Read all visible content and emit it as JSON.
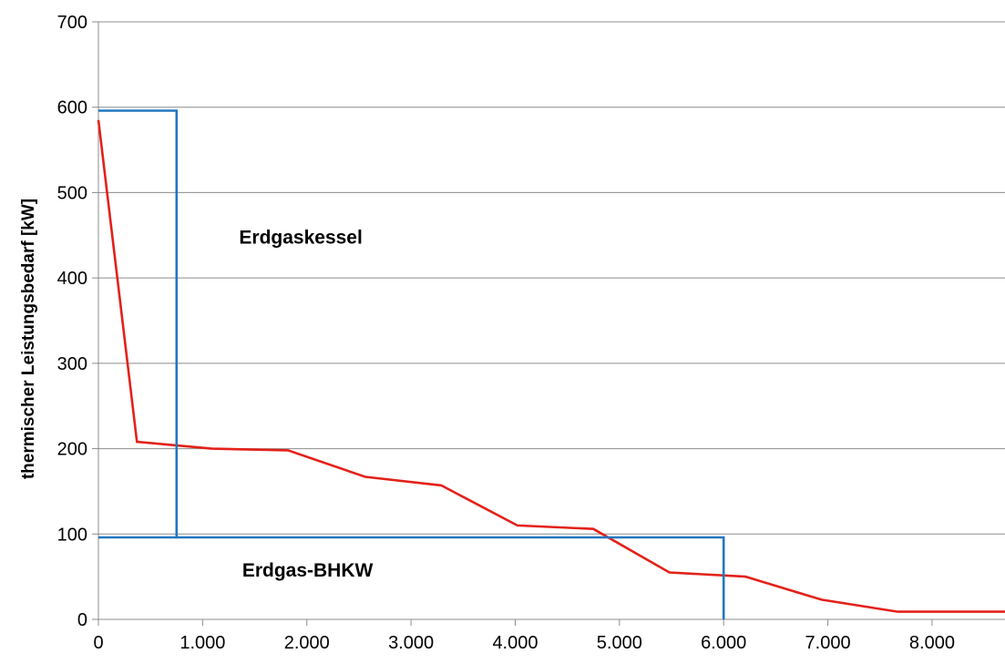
{
  "chart_data": {
    "type": "line",
    "title": "",
    "xlabel": "",
    "ylabel": "thermischer Leistungsbedarf [kW]",
    "xlim": [
      0,
      8700
    ],
    "ylim": [
      0,
      700
    ],
    "grid": true,
    "x_ticks": [
      0,
      1000,
      2000,
      3000,
      4000,
      5000,
      6000,
      7000,
      8000
    ],
    "x_tick_labels": [
      "0",
      "1.000",
      "2.000",
      "3.000",
      "4.000",
      "5.000",
      "6.000",
      "7.000",
      "8.000"
    ],
    "y_ticks": [
      0,
      100,
      200,
      300,
      400,
      500,
      600,
      700
    ],
    "y_tick_labels": [
      "0",
      "100",
      "200",
      "300",
      "400",
      "500",
      "600",
      "700"
    ],
    "series": [
      {
        "name": "",
        "color": "#e32119",
        "points": [
          [
            0,
            585
          ],
          [
            370,
            208
          ],
          [
            1090,
            200
          ],
          [
            1820,
            198
          ],
          [
            2560,
            167
          ],
          [
            3290,
            157
          ],
          [
            4020,
            110
          ],
          [
            4750,
            106
          ],
          [
            5480,
            55
          ],
          [
            6210,
            50
          ],
          [
            6940,
            23
          ],
          [
            7670,
            9
          ],
          [
            8700,
            9
          ]
        ]
      },
      {
        "name": "",
        "color": "#2277c0",
        "points": [
          [
            0,
            596
          ],
          [
            750,
            596
          ],
          [
            750,
            96
          ],
          [
            6000,
            96
          ],
          [
            6000,
            0
          ]
        ]
      },
      {
        "name": "",
        "color": "#2277c0",
        "points": [
          [
            0,
            96
          ],
          [
            750,
            96
          ]
        ]
      }
    ],
    "annotations": [
      {
        "text": "Erdgaskessel",
        "x": 1350,
        "y": 440
      },
      {
        "text": "Erdgas-BHKW",
        "x": 1380,
        "y": 50
      }
    ]
  }
}
